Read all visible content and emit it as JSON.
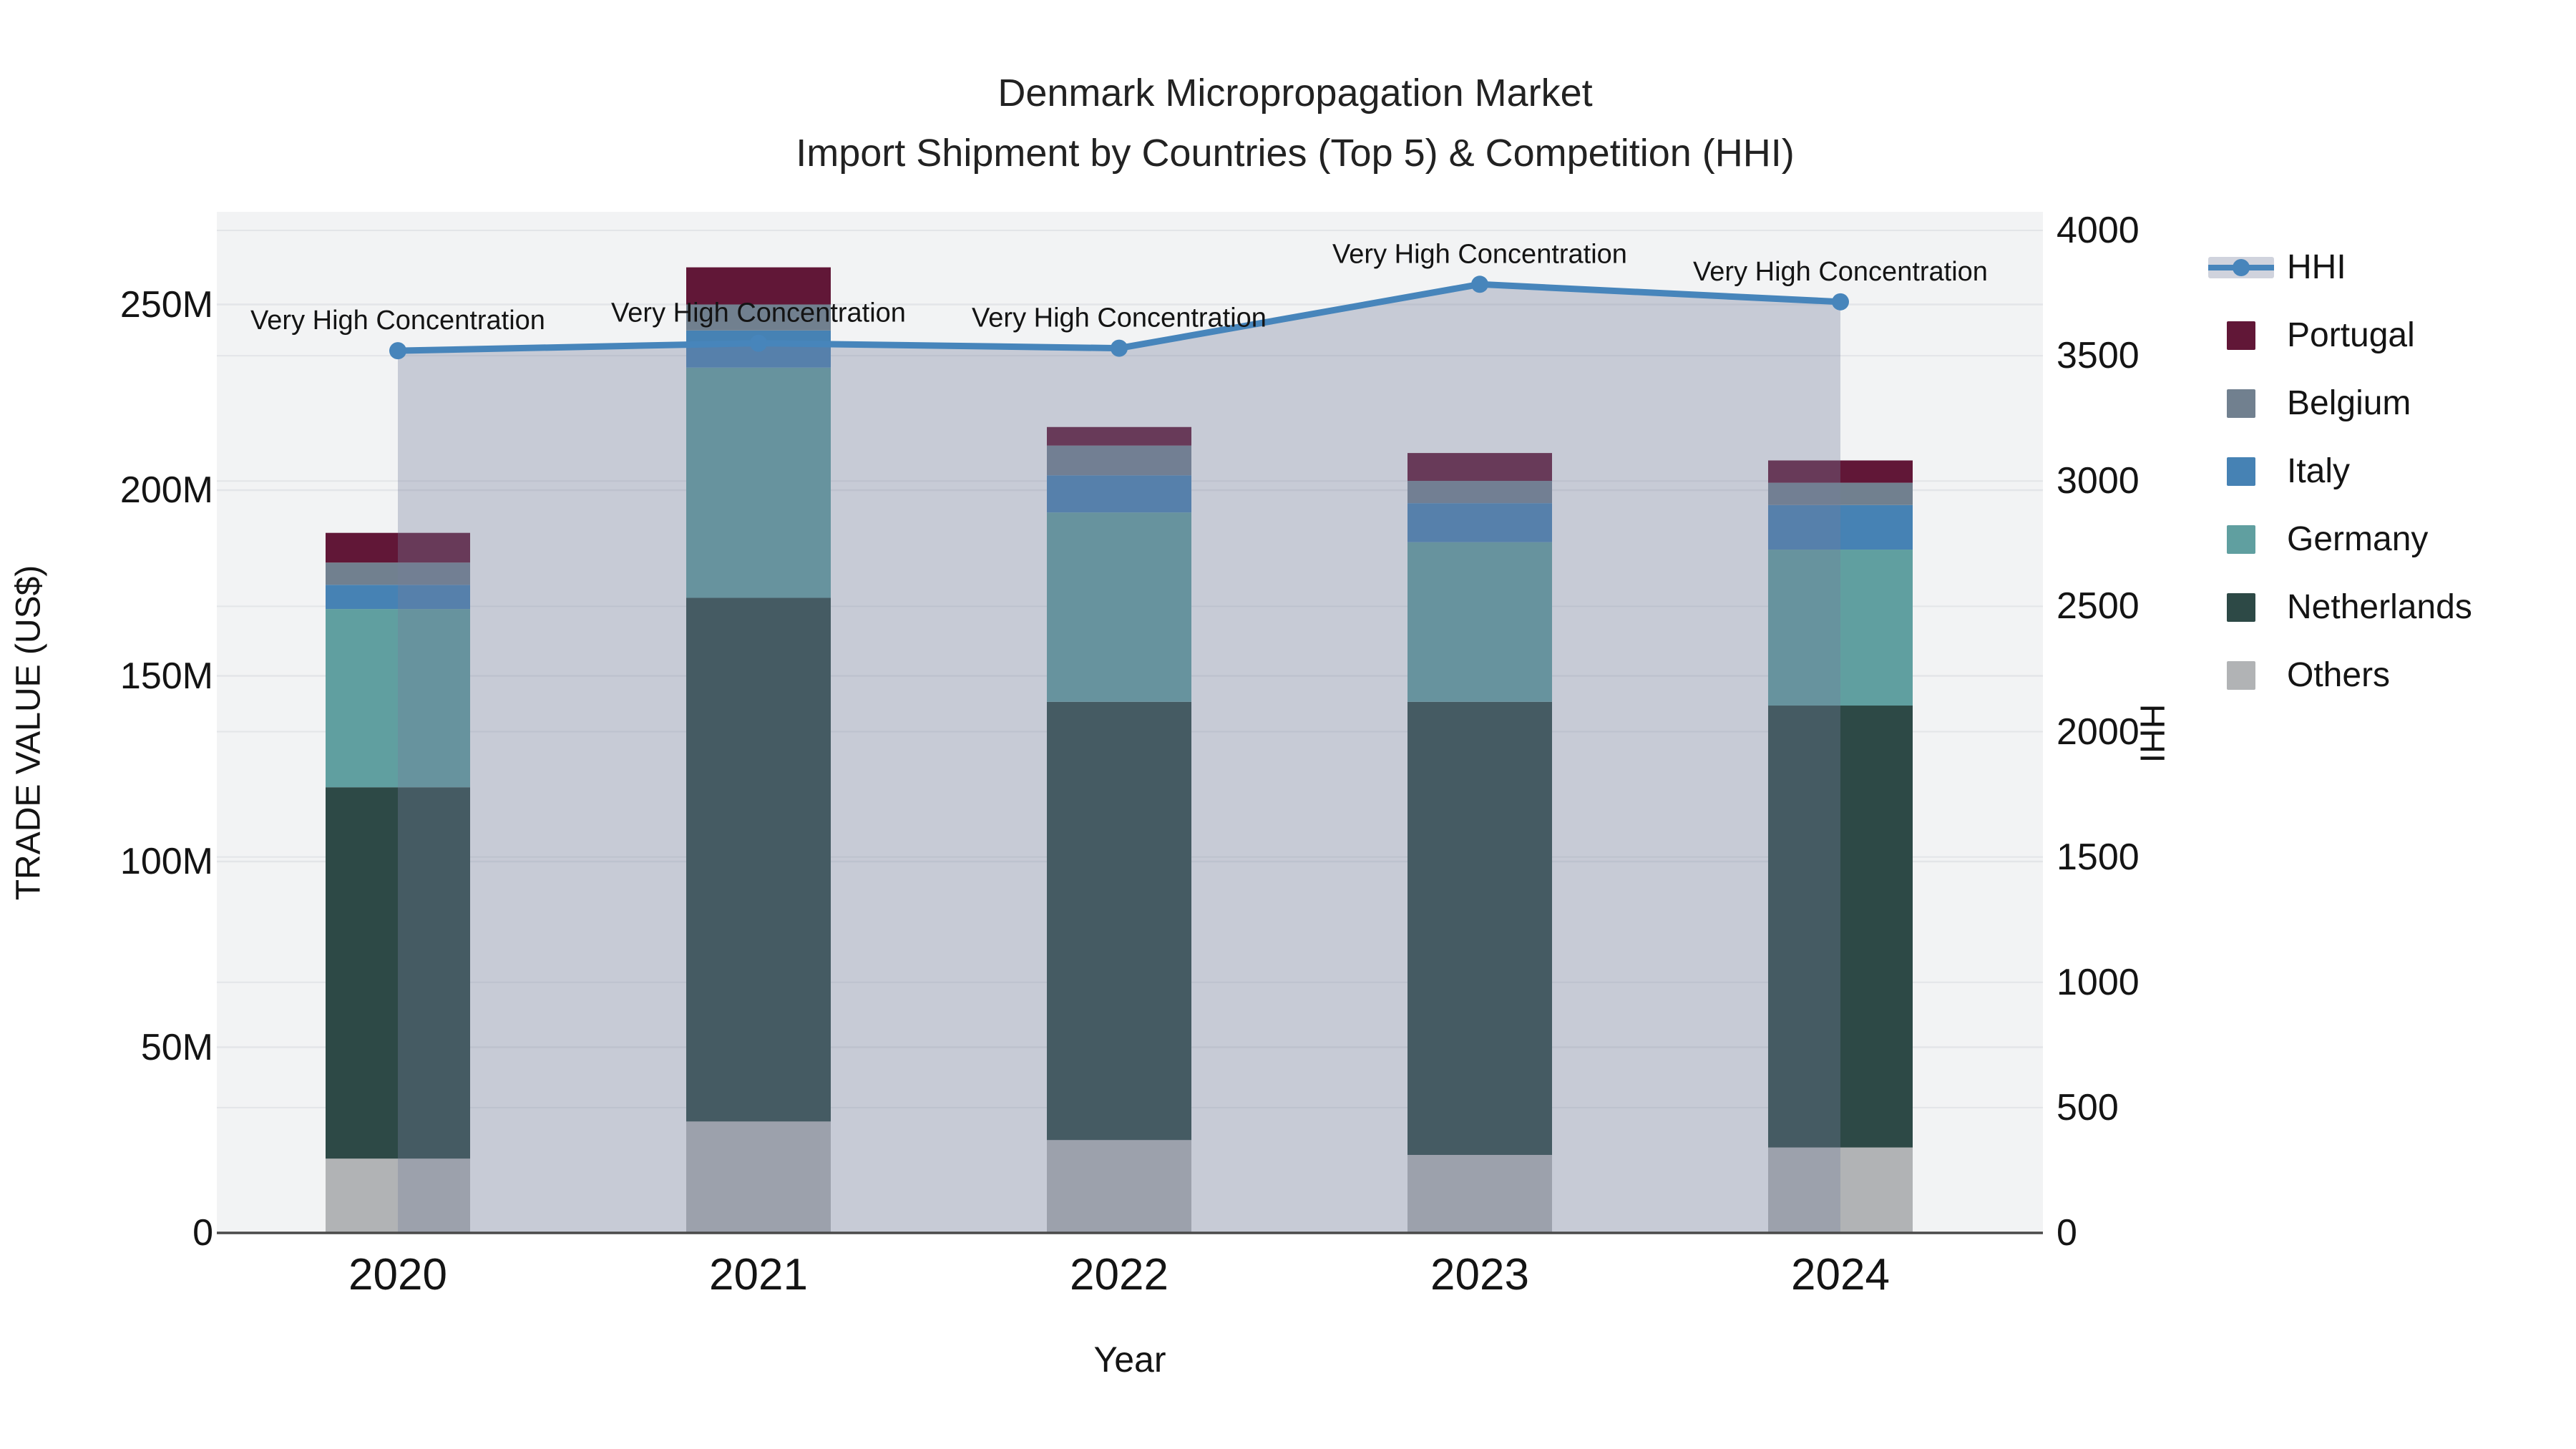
{
  "title": {
    "line1": "Denmark Micropropagation Market",
    "line2": "Import Shipment by Countries (Top 5) & Competition (HHI)"
  },
  "axes": {
    "x_title": "Year",
    "y_left_title": "TRADE VALUE (US$)",
    "y_right_title": "HHI",
    "y_left_ticks": [
      "0",
      "50M",
      "100M",
      "150M",
      "200M",
      "250M"
    ],
    "y_right_ticks": [
      "0",
      "500",
      "1000",
      "1500",
      "2000",
      "2500",
      "3000",
      "3500",
      "4000"
    ],
    "x_ticks": [
      "2020",
      "2021",
      "2022",
      "2023",
      "2024"
    ]
  },
  "legend_order": [
    "HHI",
    "Portugal",
    "Belgium",
    "Italy",
    "Germany",
    "Netherlands",
    "Others"
  ],
  "chart_data": {
    "type": "bar",
    "subtype": "stacked-bars-with-line-overlay",
    "title": "Denmark Micropropagation Market — Import Shipment by Countries (Top 5) & Competition (HHI)",
    "xlabel": "Year",
    "ylabel": "TRADE VALUE (US$)",
    "ylabel_right": "HHI",
    "categories": [
      2020,
      2021,
      2022,
      2023,
      2024
    ],
    "bar_value_unit": "million US$",
    "series": [
      {
        "name": "Others",
        "color": "#b1b3b5",
        "values": [
          20,
          30,
          25,
          21,
          23
        ]
      },
      {
        "name": "Netherlands",
        "color": "#2d4946",
        "values": [
          100,
          141,
          118,
          122,
          119
        ]
      },
      {
        "name": "Germany",
        "color": "#609fa0",
        "values": [
          48,
          62,
          51,
          43,
          42
        ]
      },
      {
        "name": "Italy",
        "color": "#4682b4",
        "values": [
          6.5,
          10,
          10,
          10.5,
          12
        ]
      },
      {
        "name": "Belgium",
        "color": "#71808f",
        "values": [
          6,
          7,
          8,
          6,
          6
        ]
      },
      {
        "name": "Portugal",
        "color": "#611737",
        "values": [
          8,
          10,
          5,
          7.5,
          6
        ]
      }
    ],
    "bar_totals": [
      188.5,
      260,
      217,
      210,
      208
    ],
    "line_series": {
      "name": "HHI",
      "axis": "right",
      "color": "#4785bb",
      "area_fill": "rgba(116,127,154,0.34)",
      "values": [
        3520,
        3550,
        3530,
        3785,
        3715
      ]
    },
    "annotations": [
      "Very High Concentration",
      "Very High Concentration",
      "Very High Concentration",
      "Very High Concentration",
      "Very High Concentration"
    ],
    "y_left_range": [
      0,
      250000000
    ],
    "y_right_range": [
      0,
      4000
    ],
    "grid": true,
    "legend_position": "right"
  },
  "colors": {
    "plot_bg": "#f2f3f4",
    "grid": "#e3e5e8",
    "axis_line": "#4a4a4a",
    "text": "#141414"
  }
}
